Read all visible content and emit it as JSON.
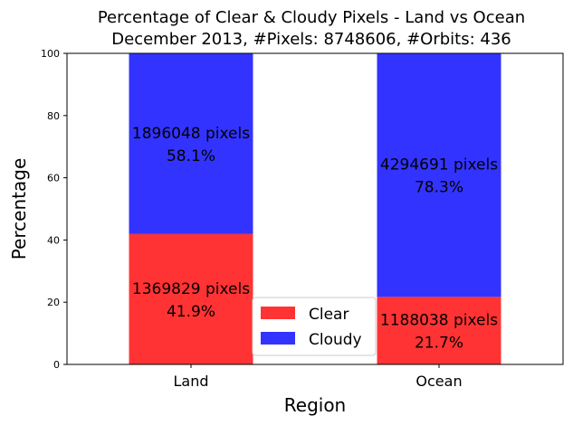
{
  "chart_data": {
    "type": "bar",
    "stacked": true,
    "title_line1": "Percentage of Clear & Cloudy Pixels - Land vs Ocean",
    "title_line2": "December 2013, #Pixels: 8748606, #Orbits: 436",
    "xlabel": "Region",
    "ylabel": "Percentage",
    "categories": [
      "Land",
      "Ocean"
    ],
    "ylim": [
      0,
      100
    ],
    "yticks": [
      "0",
      "20",
      "40",
      "60",
      "80",
      "100"
    ],
    "grid": false,
    "legend_position": "lower-center",
    "series": [
      {
        "name": "Clear",
        "color": "#ff3333",
        "values": [
          41.9,
          21.7
        ],
        "pixel_labels": [
          "1369829 pixels",
          "1188038 pixels"
        ],
        "percent_labels": [
          "41.9%",
          "21.7%"
        ]
      },
      {
        "name": "Cloudy",
        "color": "#3333ff",
        "values": [
          58.1,
          78.3
        ],
        "pixel_labels": [
          "1896048 pixels",
          "4294691 pixels"
        ],
        "percent_labels": [
          "58.1%",
          "78.3%"
        ]
      }
    ]
  }
}
